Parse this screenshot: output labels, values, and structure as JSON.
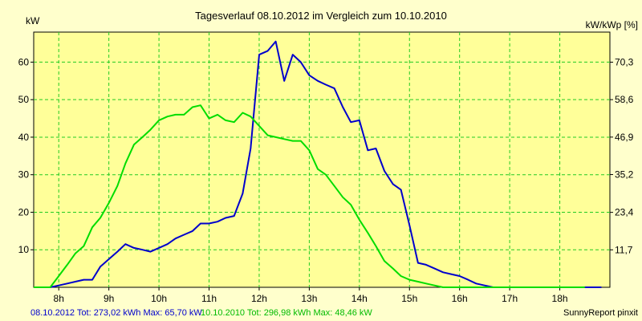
{
  "chart_data": {
    "type": "line",
    "title": "Tagesverlauf 08.10.2012 im Vergleich zum 10.10.2010",
    "ylabel_left": "kW",
    "ylabel_right": "kW/kWp [%]",
    "x_unit": "h",
    "xlim": [
      7.5,
      19.0
    ],
    "ylim": [
      0,
      68
    ],
    "x_ticks": [
      8,
      9,
      10,
      11,
      12,
      13,
      14,
      15,
      16,
      17,
      18
    ],
    "x_tick_labels": [
      "8h",
      "9h",
      "10h",
      "11h",
      "12h",
      "13h",
      "14h",
      "15h",
      "16h",
      "17h",
      "18h"
    ],
    "y_ticks_left": [
      10,
      20,
      30,
      40,
      50,
      60
    ],
    "y_tick_labels_left": [
      "10",
      "20",
      "30",
      "40",
      "50",
      "60"
    ],
    "y_ticks_right": [
      11.7,
      23.4,
      35.2,
      46.9,
      58.6,
      70.3
    ],
    "y_tick_labels_right": [
      "11,7",
      "23,4",
      "35,2",
      "46,9",
      "58,6",
      "70,3"
    ],
    "right_axis_factor": 1.1719,
    "grid": true,
    "colors": {
      "plot_bg": "#ffff99",
      "page_bg": "#ffffcc",
      "grid": "#22cc22",
      "series1": "#0000cc",
      "series2": "#00dd00"
    },
    "series": [
      {
        "name": "08.10.2012",
        "color": "#0000cc",
        "x": [
          7.5,
          7.83,
          8.0,
          8.17,
          8.33,
          8.5,
          8.67,
          8.83,
          9.0,
          9.17,
          9.33,
          9.5,
          9.67,
          9.83,
          10.0,
          10.17,
          10.33,
          10.5,
          10.67,
          10.83,
          11.0,
          11.17,
          11.33,
          11.5,
          11.67,
          11.83,
          12.0,
          12.17,
          12.33,
          12.5,
          12.67,
          12.83,
          13.0,
          13.17,
          13.33,
          13.5,
          13.67,
          13.83,
          14.0,
          14.17,
          14.33,
          14.5,
          14.67,
          14.83,
          15.0,
          15.17,
          15.33,
          15.5,
          15.67,
          15.83,
          16.0,
          16.17,
          16.33,
          16.5,
          16.67,
          16.83,
          17.0,
          17.17,
          17.33,
          17.5,
          17.67,
          17.83,
          18.0,
          18.17,
          18.33,
          18.5,
          18.67,
          18.83
        ],
        "values": [
          0,
          0,
          0.5,
          1,
          1.5,
          2,
          2,
          5.5,
          7.5,
          9.5,
          11.5,
          10.5,
          10,
          9.5,
          10.5,
          11.5,
          13,
          14,
          15,
          17,
          17,
          17.5,
          18.5,
          19,
          25,
          37,
          62,
          63,
          65.5,
          55,
          62,
          60,
          56.5,
          55,
          54,
          53,
          48,
          44,
          44.5,
          36.5,
          37,
          31,
          27.5,
          26,
          16.5,
          6.5,
          6,
          5,
          4,
          3.5,
          3,
          2,
          1,
          0.5,
          0,
          0,
          0,
          0,
          0,
          0,
          0,
          0,
          0,
          0,
          0,
          0,
          0,
          0
        ]
      },
      {
        "name": "10.10.2010",
        "color": "#00dd00",
        "x": [
          7.5,
          7.83,
          8.0,
          8.17,
          8.33,
          8.5,
          8.67,
          8.83,
          9.0,
          9.17,
          9.33,
          9.5,
          9.67,
          9.83,
          10.0,
          10.17,
          10.33,
          10.5,
          10.67,
          10.83,
          11.0,
          11.17,
          11.33,
          11.5,
          11.67,
          11.83,
          12.0,
          12.17,
          12.33,
          12.5,
          12.67,
          12.83,
          13.0,
          13.17,
          13.33,
          13.5,
          13.67,
          13.83,
          14.0,
          14.17,
          14.33,
          14.5,
          14.67,
          14.83,
          15.0,
          15.17,
          15.33,
          15.5,
          15.67,
          15.83,
          16.0,
          16.17,
          16.33,
          16.5,
          16.67,
          16.83,
          17.0,
          17.17,
          17.33,
          17.5,
          17.67,
          17.83,
          18.0,
          18.17,
          18.33,
          18.5
        ],
        "values": [
          0,
          0,
          3,
          6,
          9,
          11,
          16,
          18.5,
          22.5,
          27,
          33,
          38,
          40,
          42,
          44.5,
          45.5,
          46,
          46,
          48,
          48.5,
          45,
          46,
          44.5,
          44,
          46.5,
          45.5,
          43,
          40.5,
          40,
          39.5,
          39,
          39,
          36.5,
          31.5,
          30,
          27,
          24,
          22,
          18,
          14.5,
          11,
          7,
          5,
          3,
          2,
          1.5,
          1,
          0.5,
          0,
          0,
          0,
          0,
          0,
          0,
          0,
          0,
          0,
          0,
          0,
          0,
          0,
          0,
          0,
          0,
          0,
          0
        ]
      }
    ]
  },
  "footer": {
    "series1_summary": "08.10.2012 Tot: 273,02 kWh Max: 65,70 kW",
    "series2_summary": "10.10.2010 Tot: 296,98 kWh Max: 48,46 kW",
    "credit": "SunnyReport pinxit"
  }
}
